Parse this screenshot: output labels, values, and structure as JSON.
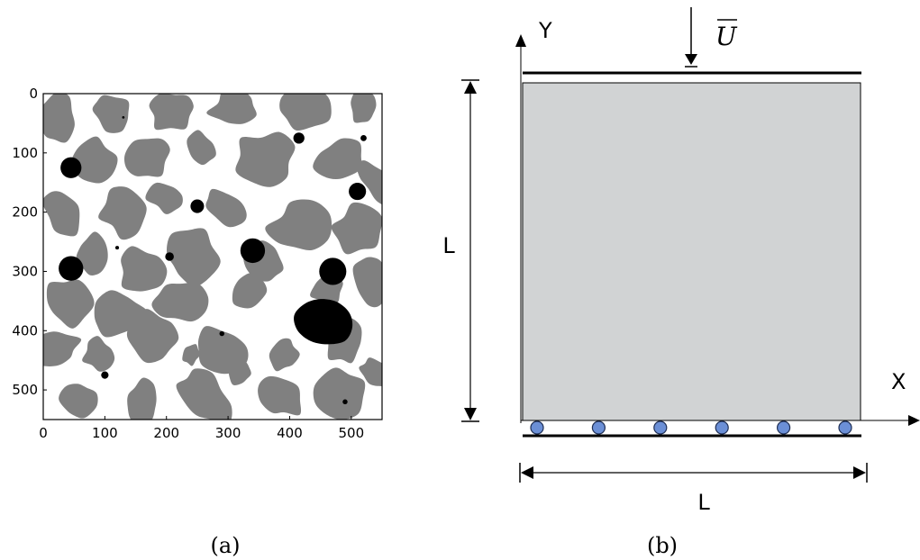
{
  "panel_a": {
    "caption": "(a)",
    "x_ticks": [
      "0",
      "100",
      "200",
      "300",
      "400",
      "500"
    ],
    "y_ticks": [
      "0",
      "100",
      "200",
      "300",
      "400",
      "500"
    ],
    "colors": {
      "matrix": "#ffffff",
      "aggregate": "#808080",
      "void": "#000000"
    }
  },
  "panel_b": {
    "caption": "(b)",
    "y_axis_label": "Y",
    "x_axis_label": "X",
    "load_label": "U",
    "height_label": "L",
    "width_label": "L",
    "support_count": 6,
    "colors": {
      "specimen": "#d1d3d4",
      "support": "#6b8fd6"
    }
  }
}
